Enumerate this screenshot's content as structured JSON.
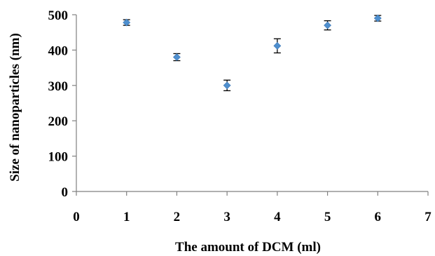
{
  "chart_data": {
    "type": "scatter",
    "title": "",
    "xlabel": "The amount of DCM (ml)",
    "ylabel": "Size of nanoparticles (nm)",
    "xlim": [
      0,
      7
    ],
    "ylim": [
      0,
      500
    ],
    "x_ticks": [
      "0",
      "1",
      "2",
      "3",
      "4",
      "5",
      "6",
      "7"
    ],
    "y_ticks": [
      "0",
      "100",
      "200",
      "300",
      "400",
      "500"
    ],
    "grid": false,
    "legend": "none",
    "marker": "diamond",
    "marker_color": "#4f8fce",
    "series": [
      {
        "x": [
          1,
          2,
          3,
          4,
          5,
          6
        ],
        "y": [
          478,
          380,
          300,
          412,
          470,
          490
        ],
        "error": [
          8,
          10,
          15,
          20,
          13,
          8
        ]
      }
    ]
  }
}
